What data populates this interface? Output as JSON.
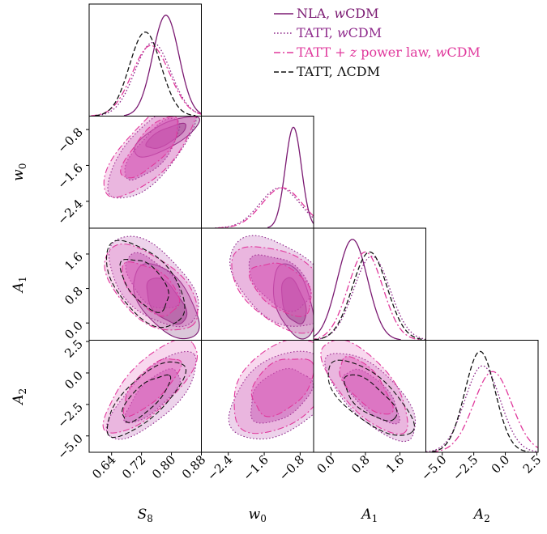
{
  "chart_data": {
    "type": "corner",
    "title": "",
    "parameters": [
      {
        "key": "S8",
        "label": "S",
        "sub": "8",
        "range": [
          0.58,
          0.88
        ],
        "ticks": [
          "0.64",
          "0.72",
          "0.80",
          "0.88"
        ],
        "tick_values": [
          0.64,
          0.72,
          0.8,
          0.88
        ]
      },
      {
        "key": "w0",
        "label": "w",
        "sub": "0",
        "range": [
          -3.0,
          -0.5
        ],
        "ticks": [
          "−2.4",
          "−1.6",
          "−0.8"
        ],
        "tick_values": [
          -2.4,
          -1.6,
          -0.8
        ]
      },
      {
        "key": "A1",
        "label": "A",
        "sub": "1",
        "range": [
          -0.4,
          2.2
        ],
        "ticks": [
          "0.0",
          "0.8",
          "1.6"
        ],
        "tick_values": [
          0.0,
          0.8,
          1.6
        ]
      },
      {
        "key": "A2",
        "label": "A",
        "sub": "2",
        "range": [
          -6.3,
          2.6
        ],
        "ticks": [
          "−5.0",
          "−2.5",
          "0.0",
          "2.5"
        ],
        "tick_values": [
          -5.0,
          -2.5,
          0.0,
          2.5
        ]
      }
    ],
    "legend": {
      "placement": "top-right",
      "entries": [
        {
          "id": "nla",
          "text": "NLA, ",
          "italic": "w",
          "rest": "CDM",
          "color": "#7b1a72",
          "dash": "solid"
        },
        {
          "id": "tatt",
          "text": "TATT, ",
          "italic": "w",
          "rest": "CDM",
          "color": "#8f2b8c",
          "dash": "dotted"
        },
        {
          "id": "tattz",
          "text": "TATT + ",
          "italic": "z",
          "rest": " power law, ",
          "italic2": "w",
          "rest2": "CDM",
          "color": "#e0389c",
          "dash": "dashdot"
        },
        {
          "id": "lcdm",
          "text": "TATT, ΛCDM",
          "color": "#111111",
          "dash": "dashed"
        }
      ]
    },
    "series": [
      {
        "id": "nla",
        "color": "#7b1a72",
        "fill": "#6a1464",
        "dash": "solid",
        "mean": {
          "S8": 0.785,
          "w0": -0.95,
          "A1": 0.5,
          "A2": null
        },
        "sd": {
          "S8": 0.035,
          "w0": 0.18,
          "A1": 0.35,
          "A2": null
        },
        "params": [
          "S8",
          "w0",
          "A1"
        ]
      },
      {
        "id": "tatt",
        "color": "#8f2b8c",
        "fill": "#b446ad",
        "dash": "dotted",
        "mean": {
          "S8": 0.75,
          "w0": -1.25,
          "A1": 0.95,
          "A2": -1.8
        },
        "sd": {
          "S8": 0.048,
          "w0": 0.45,
          "A1": 0.42,
          "A2": 1.4
        },
        "params": [
          "S8",
          "w0",
          "A1",
          "A2"
        ]
      },
      {
        "id": "tattz",
        "color": "#e0389c",
        "fill": "#e35ab8",
        "dash": "dashdot",
        "mean": {
          "S8": 0.745,
          "w0": -1.2,
          "A1": 0.8,
          "A2": -1.0
        },
        "sd": {
          "S8": 0.05,
          "w0": 0.45,
          "A1": 0.4,
          "A2": 1.5
        },
        "params": [
          "S8",
          "w0",
          "A1",
          "A2"
        ]
      },
      {
        "id": "lcdm",
        "color": "#111111",
        "fill": "none",
        "dash": "dashed",
        "mean": {
          "S8": 0.73,
          "w0": null,
          "A1": 0.9,
          "A2": -2.0
        },
        "sd": {
          "S8": 0.042,
          "w0": null,
          "A1": 0.4,
          "A2": 1.2
        },
        "params": [
          "S8",
          "A1",
          "A2"
        ]
      }
    ],
    "correlations": {
      "S8|w0": 0.75,
      "S8|A1": -0.55,
      "S8|A2": 0.75,
      "w0|A1": -0.45,
      "w0|A2": 0.4,
      "A1|A2": -0.7
    },
    "grid": false
  }
}
